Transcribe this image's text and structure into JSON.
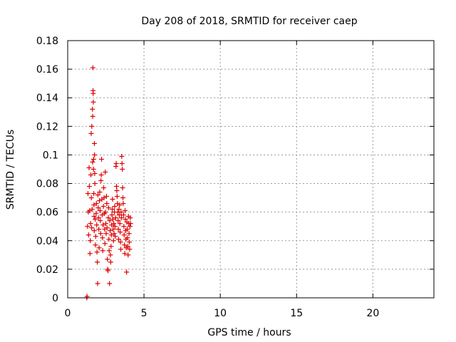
{
  "chart_data": {
    "type": "scatter",
    "title": "Day 208 of 2018, SRMTID for receiver caep",
    "xlabel": "GPS time / hours",
    "ylabel": "SRMTID / TECUs",
    "xlim": [
      0,
      24
    ],
    "ylim": [
      0,
      0.18
    ],
    "xticks": [
      0,
      5,
      10,
      15,
      20
    ],
    "xtick_labels": [
      "0",
      "5",
      "10",
      "15",
      "20"
    ],
    "yticks": [
      0,
      0.02,
      0.04,
      0.06,
      0.08,
      0.1,
      0.12,
      0.14,
      0.16,
      0.18
    ],
    "ytick_labels": [
      "0",
      "0.02",
      "0.04",
      "0.06",
      "0.08",
      "0.1",
      "0.12",
      "0.14",
      "0.16",
      "0.18"
    ],
    "grid": true,
    "marker": "plus",
    "color": "#dd0000",
    "series": [
      {
        "name": "SRMTID",
        "points": [
          [
            1.25,
            0.0
          ],
          [
            1.27,
            0.001
          ],
          [
            1.3,
            0.05
          ],
          [
            1.33,
            0.073
          ],
          [
            1.35,
            0.06
          ],
          [
            1.37,
            0.044
          ],
          [
            1.4,
            0.091
          ],
          [
            1.42,
            0.078
          ],
          [
            1.44,
            0.061
          ],
          [
            1.46,
            0.031
          ],
          [
            1.48,
            0.04
          ],
          [
            1.5,
            0.052
          ],
          [
            1.52,
            0.086
          ],
          [
            1.54,
            0.115
          ],
          [
            1.55,
            0.07
          ],
          [
            1.57,
            0.049
          ],
          [
            1.58,
            0.12
          ],
          [
            1.6,
            0.062
          ],
          [
            1.62,
            0.132
          ],
          [
            1.63,
            0.095
          ],
          [
            1.64,
            0.127
          ],
          [
            1.65,
            0.161
          ],
          [
            1.66,
            0.145
          ],
          [
            1.67,
            0.143
          ],
          [
            1.68,
            0.137
          ],
          [
            1.69,
            0.09
          ],
          [
            1.7,
            0.097
          ],
          [
            1.71,
            0.073
          ],
          [
            1.72,
            0.065
          ],
          [
            1.73,
            0.057
          ],
          [
            1.74,
            0.047
          ],
          [
            1.75,
            0.108
          ],
          [
            1.76,
            0.1
          ],
          [
            1.77,
            0.087
          ],
          [
            1.78,
            0.08
          ],
          [
            1.8,
            0.055
          ],
          [
            1.82,
            0.037
          ],
          [
            1.84,
            0.043
          ],
          [
            1.86,
            0.059
          ],
          [
            1.88,
            0.066
          ],
          [
            1.9,
            0.051
          ],
          [
            1.92,
            0.032
          ],
          [
            1.94,
            0.025
          ],
          [
            1.96,
            0.01
          ],
          [
            1.98,
            0.072
          ],
          [
            2.0,
            0.063
          ],
          [
            2.02,
            0.056
          ],
          [
            2.04,
            0.048
          ],
          [
            2.06,
            0.035
          ],
          [
            2.08,
            0.068
          ],
          [
            2.1,
            0.074
          ],
          [
            2.12,
            0.061
          ],
          [
            2.14,
            0.054
          ],
          [
            2.16,
            0.045
          ],
          [
            2.18,
            0.082
          ],
          [
            2.2,
            0.086
          ],
          [
            2.22,
            0.097
          ],
          [
            2.24,
            0.069
          ],
          [
            2.26,
            0.058
          ],
          [
            2.28,
            0.042
          ],
          [
            2.3,
            0.033
          ],
          [
            2.32,
            0.051
          ],
          [
            2.34,
            0.064
          ],
          [
            2.36,
            0.077
          ],
          [
            2.38,
            0.07
          ],
          [
            2.4,
            0.059
          ],
          [
            2.42,
            0.048
          ],
          [
            2.44,
            0.038
          ],
          [
            2.46,
            0.088
          ],
          [
            2.48,
            0.06
          ],
          [
            2.5,
            0.052
          ],
          [
            2.52,
            0.045
          ],
          [
            2.54,
            0.071
          ],
          [
            2.56,
            0.066
          ],
          [
            2.58,
            0.049
          ],
          [
            2.6,
            0.027
          ],
          [
            2.62,
            0.02
          ],
          [
            2.64,
            0.019
          ],
          [
            2.66,
            0.056
          ],
          [
            2.68,
            0.063
          ],
          [
            2.7,
            0.041
          ],
          [
            2.72,
            0.033
          ],
          [
            2.74,
            0.01
          ],
          [
            2.76,
            0.054
          ],
          [
            2.78,
            0.047
          ],
          [
            2.8,
            0.03
          ],
          [
            2.82,
            0.025
          ],
          [
            2.84,
            0.036
          ],
          [
            2.86,
            0.044
          ],
          [
            2.88,
            0.051
          ],
          [
            2.9,
            0.058
          ],
          [
            2.92,
            0.062
          ],
          [
            2.94,
            0.069
          ],
          [
            2.96,
            0.055
          ],
          [
            2.98,
            0.048
          ],
          [
            3.0,
            0.04
          ],
          [
            3.02,
            0.052
          ],
          [
            3.04,
            0.045
          ],
          [
            3.06,
            0.06
          ],
          [
            3.08,
            0.064
          ],
          [
            3.1,
            0.05
          ],
          [
            3.12,
            0.043
          ],
          [
            3.14,
            0.056
          ],
          [
            3.16,
            0.092
          ],
          [
            3.18,
            0.094
          ],
          [
            3.2,
            0.078
          ],
          [
            3.22,
            0.075
          ],
          [
            3.24,
            0.071
          ],
          [
            3.26,
            0.066
          ],
          [
            3.28,
            0.06
          ],
          [
            3.3,
            0.054
          ],
          [
            3.32,
            0.048
          ],
          [
            3.34,
            0.041
          ],
          [
            3.36,
            0.062
          ],
          [
            3.38,
            0.058
          ],
          [
            3.4,
            0.065
          ],
          [
            3.42,
            0.052
          ],
          [
            3.44,
            0.046
          ],
          [
            3.46,
            0.039
          ],
          [
            3.48,
            0.034
          ],
          [
            3.5,
            0.06
          ],
          [
            3.52,
            0.056
          ],
          [
            3.54,
            0.099
          ],
          [
            3.56,
            0.094
          ],
          [
            3.58,
            0.09
          ],
          [
            3.6,
            0.077
          ],
          [
            3.62,
            0.07
          ],
          [
            3.64,
            0.066
          ],
          [
            3.66,
            0.058
          ],
          [
            3.68,
            0.05
          ],
          [
            3.7,
            0.044
          ],
          [
            3.72,
            0.037
          ],
          [
            3.74,
            0.031
          ],
          [
            3.76,
            0.061
          ],
          [
            3.78,
            0.055
          ],
          [
            3.8,
            0.047
          ],
          [
            3.82,
            0.041
          ],
          [
            3.84,
            0.035
          ],
          [
            3.86,
            0.018
          ],
          [
            3.88,
            0.053
          ],
          [
            3.9,
            0.048
          ],
          [
            3.92,
            0.042
          ],
          [
            3.94,
            0.036
          ],
          [
            3.96,
            0.03
          ],
          [
            3.98,
            0.057
          ],
          [
            4.0,
            0.052
          ],
          [
            4.02,
            0.045
          ],
          [
            4.04,
            0.039
          ],
          [
            4.06,
            0.034
          ],
          [
            4.08,
            0.05
          ],
          [
            4.1,
            0.056
          ],
          [
            4.12,
            0.052
          ]
        ]
      }
    ]
  }
}
